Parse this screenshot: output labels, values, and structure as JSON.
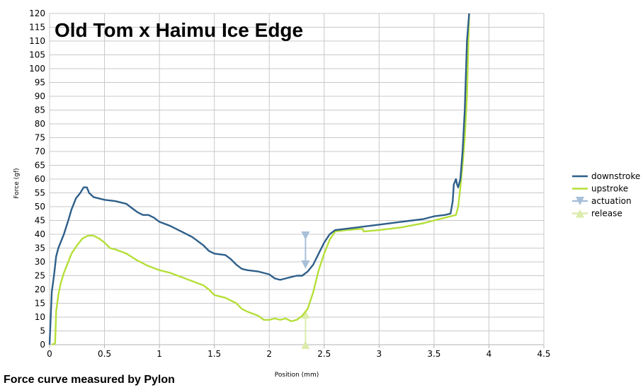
{
  "footnote": "Force curve measured by Pylon",
  "chart_data": {
    "type": "line",
    "title": "Old Tom x Haimu Ice Edge",
    "xlabel": "Position (mm)",
    "ylabel": "Force (gf)",
    "xlim": [
      0,
      4.5
    ],
    "ylim": [
      0,
      120
    ],
    "x_ticks": [
      0,
      0.5,
      1,
      1.5,
      2,
      2.5,
      3,
      3.5,
      4,
      4.5
    ],
    "x_tick_labels": [
      "0",
      "0.5",
      "1",
      "1.5",
      "2",
      "2.5",
      "3",
      "3.5",
      "4",
      "4.5"
    ],
    "y_ticks": [
      0,
      5,
      10,
      15,
      20,
      25,
      30,
      35,
      40,
      45,
      50,
      55,
      60,
      65,
      70,
      75,
      80,
      85,
      90,
      95,
      100,
      105,
      110,
      115,
      120
    ],
    "grid": true,
    "legend_position": "right",
    "series": [
      {
        "name": "downstroke",
        "color": "#2e5f8a",
        "marker": "none",
        "points": [
          [
            0,
            0
          ],
          [
            0.02,
            19
          ],
          [
            0.04,
            25
          ],
          [
            0.06,
            32
          ],
          [
            0.08,
            35
          ],
          [
            0.1,
            37
          ],
          [
            0.13,
            40
          ],
          [
            0.17,
            45
          ],
          [
            0.2,
            49
          ],
          [
            0.24,
            53
          ],
          [
            0.28,
            55
          ],
          [
            0.31,
            57
          ],
          [
            0.34,
            57
          ],
          [
            0.36,
            55
          ],
          [
            0.4,
            53.5
          ],
          [
            0.5,
            52.5
          ],
          [
            0.6,
            52
          ],
          [
            0.7,
            51
          ],
          [
            0.75,
            49.5
          ],
          [
            0.8,
            48
          ],
          [
            0.85,
            47
          ],
          [
            0.9,
            47
          ],
          [
            0.95,
            46
          ],
          [
            1.0,
            44.5
          ],
          [
            1.1,
            43
          ],
          [
            1.2,
            41
          ],
          [
            1.3,
            39
          ],
          [
            1.4,
            36
          ],
          [
            1.45,
            34
          ],
          [
            1.5,
            33
          ],
          [
            1.6,
            32.5
          ],
          [
            1.65,
            31
          ],
          [
            1.7,
            29
          ],
          [
            1.75,
            27.5
          ],
          [
            1.8,
            27
          ],
          [
            1.9,
            26.5
          ],
          [
            1.95,
            26
          ],
          [
            2.0,
            25.5
          ],
          [
            2.05,
            24
          ],
          [
            2.1,
            23.5
          ],
          [
            2.15,
            24
          ],
          [
            2.2,
            24.5
          ],
          [
            2.25,
            25
          ],
          [
            2.3,
            25
          ],
          [
            2.35,
            26.5
          ],
          [
            2.4,
            29
          ],
          [
            2.45,
            33
          ],
          [
            2.5,
            37
          ],
          [
            2.55,
            40
          ],
          [
            2.6,
            41.5
          ],
          [
            2.7,
            42
          ],
          [
            2.8,
            42.5
          ],
          [
            2.9,
            43
          ],
          [
            3.0,
            43.5
          ],
          [
            3.1,
            44
          ],
          [
            3.2,
            44.5
          ],
          [
            3.3,
            45
          ],
          [
            3.4,
            45.5
          ],
          [
            3.5,
            46.5
          ],
          [
            3.6,
            47
          ],
          [
            3.65,
            47.5
          ],
          [
            3.67,
            52
          ],
          [
            3.68,
            58
          ],
          [
            3.7,
            60
          ],
          [
            3.71,
            58
          ],
          [
            3.72,
            57
          ],
          [
            3.74,
            60
          ],
          [
            3.76,
            70
          ],
          [
            3.78,
            85
          ],
          [
            3.8,
            110
          ],
          [
            3.82,
            120
          ]
        ]
      },
      {
        "name": "upstroke",
        "color": "#b5df39",
        "marker": "none",
        "points": [
          [
            0.02,
            0
          ],
          [
            0.05,
            0.5
          ],
          [
            0.06,
            12
          ],
          [
            0.08,
            18
          ],
          [
            0.1,
            22
          ],
          [
            0.13,
            26
          ],
          [
            0.17,
            30
          ],
          [
            0.2,
            33
          ],
          [
            0.25,
            36
          ],
          [
            0.3,
            38.5
          ],
          [
            0.35,
            39.5
          ],
          [
            0.4,
            39.5
          ],
          [
            0.45,
            38.5
          ],
          [
            0.5,
            37
          ],
          [
            0.55,
            35
          ],
          [
            0.6,
            34.5
          ],
          [
            0.7,
            33
          ],
          [
            0.8,
            30.5
          ],
          [
            0.9,
            28.5
          ],
          [
            1.0,
            27
          ],
          [
            1.1,
            26
          ],
          [
            1.2,
            24.5
          ],
          [
            1.3,
            23
          ],
          [
            1.4,
            21.5
          ],
          [
            1.45,
            20
          ],
          [
            1.5,
            18
          ],
          [
            1.6,
            17
          ],
          [
            1.7,
            15
          ],
          [
            1.75,
            13
          ],
          [
            1.8,
            12
          ],
          [
            1.9,
            10.5
          ],
          [
            1.95,
            9
          ],
          [
            2.0,
            9
          ],
          [
            2.05,
            9.5
          ],
          [
            2.1,
            9
          ],
          [
            2.15,
            9.5
          ],
          [
            2.2,
            8.5
          ],
          [
            2.25,
            9
          ],
          [
            2.3,
            10.5
          ],
          [
            2.35,
            13
          ],
          [
            2.4,
            19
          ],
          [
            2.45,
            27
          ],
          [
            2.5,
            33
          ],
          [
            2.55,
            38
          ],
          [
            2.6,
            41
          ],
          [
            2.7,
            41.5
          ],
          [
            2.85,
            42
          ],
          [
            2.86,
            41
          ],
          [
            3.0,
            41.5
          ],
          [
            3.2,
            42.5
          ],
          [
            3.4,
            44
          ],
          [
            3.5,
            45
          ],
          [
            3.6,
            46
          ],
          [
            3.7,
            47
          ],
          [
            3.72,
            50
          ],
          [
            3.74,
            57
          ],
          [
            3.76,
            65
          ],
          [
            3.78,
            75
          ],
          [
            3.8,
            90
          ],
          [
            3.82,
            120
          ]
        ]
      },
      {
        "name": "actuation",
        "color": "#a8bfd8",
        "marker": "triangle-down",
        "points": [
          [
            2.33,
            39.5
          ],
          [
            2.33,
            29
          ]
        ]
      },
      {
        "name": "release",
        "color": "#dcecaa",
        "marker": "triangle-up",
        "points": [
          [
            2.33,
            0
          ],
          [
            2.33,
            11
          ]
        ]
      }
    ]
  }
}
